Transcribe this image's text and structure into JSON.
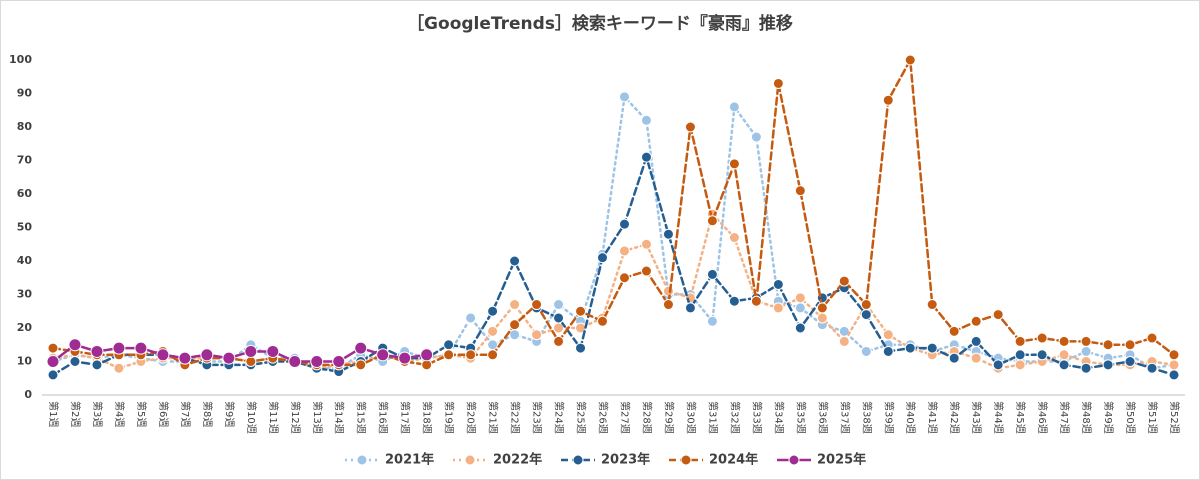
{
  "chart_data": {
    "type": "line",
    "title": "［GoogleTrends］検索キーワード『豪雨』推移",
    "categories": [
      "第1週",
      "第2週",
      "第3週",
      "第4週",
      "第5週",
      "第6週",
      "第7週",
      "第8週",
      "第9週",
      "第10週",
      "第11週",
      "第12週",
      "第13週",
      "第14週",
      "第15週",
      "第16週",
      "第17週",
      "第18週",
      "第19週",
      "第20週",
      "第21週",
      "第22週",
      "第23週",
      "第24週",
      "第25週",
      "第26週",
      "第27週",
      "第28週",
      "第29週",
      "第30週",
      "第31週",
      "第32週",
      "第33週",
      "第34週",
      "第35週",
      "第36週",
      "第37週",
      "第38週",
      "第39週",
      "第40週",
      "第41週",
      "第42週",
      "第43週",
      "第44週",
      "第45週",
      "第46週",
      "第47週",
      "第48週",
      "第49週",
      "第50週",
      "第51週",
      "第52週"
    ],
    "ylim": [
      0,
      100
    ],
    "yticks": [
      0,
      10,
      20,
      30,
      40,
      50,
      60,
      70,
      80,
      90,
      100
    ],
    "grid": false,
    "legend": "bottom",
    "series": [
      {
        "name": "2021年",
        "color": "#9dc3e6",
        "dash": "dotted",
        "values": [
          10,
          12,
          11,
          12,
          11,
          10,
          10,
          10,
          10,
          15,
          11,
          11,
          8,
          8,
          12,
          10,
          13,
          11,
          12,
          23,
          15,
          18,
          16,
          27,
          22,
          42,
          89,
          82,
          30,
          30,
          22,
          86,
          77,
          28,
          26,
          21,
          19,
          13,
          15,
          15,
          13,
          15,
          13,
          11,
          10,
          10,
          10,
          13,
          11,
          12,
          8,
          9
        ]
      },
      {
        "name": "2022年",
        "color": "#f4b183",
        "dash": "dotted",
        "values": [
          11,
          12,
          11,
          8,
          10,
          11,
          11,
          11,
          11,
          10,
          11,
          10,
          8,
          9,
          10,
          12,
          10,
          11,
          12,
          11,
          19,
          27,
          18,
          20,
          20,
          23,
          43,
          45,
          31,
          29,
          54,
          47,
          28,
          26,
          29,
          23,
          16,
          27,
          18,
          14,
          12,
          13,
          11,
          8,
          9,
          10,
          12,
          10,
          9,
          9,
          10,
          9
        ]
      },
      {
        "name": "2023年",
        "color": "#255e91",
        "dash": "dashed",
        "values": [
          6,
          10,
          9,
          12,
          12,
          12,
          11,
          9,
          9,
          9,
          10,
          10,
          8,
          7,
          10,
          14,
          11,
          11,
          15,
          14,
          25,
          40,
          26,
          23,
          14,
          41,
          51,
          71,
          48,
          26,
          36,
          28,
          29,
          33,
          20,
          29,
          32,
          24,
          13,
          14,
          14,
          11,
          16,
          9,
          12,
          12,
          9,
          8,
          9,
          10,
          8,
          6
        ]
      },
      {
        "name": "2024年",
        "color": "#c55a11",
        "dash": "dashed",
        "values": [
          14,
          13,
          12,
          12,
          12,
          13,
          9,
          11,
          11,
          10,
          11,
          10,
          9,
          9,
          9,
          12,
          10,
          9,
          12,
          12,
          12,
          21,
          27,
          16,
          25,
          22,
          35,
          37,
          27,
          80,
          52,
          69,
          28,
          93,
          61,
          26,
          34,
          27,
          88,
          100,
          27,
          19,
          22,
          24,
          16,
          17,
          16,
          16,
          15,
          15,
          17,
          12
        ]
      },
      {
        "name": "2025年",
        "color": "#a02b93",
        "dash": "solid",
        "values": [
          10,
          15,
          13,
          14,
          14,
          12,
          11,
          12,
          11,
          13,
          13,
          10,
          10,
          10,
          14,
          12,
          11,
          12,
          null,
          null,
          null,
          null,
          null,
          null,
          null,
          null,
          null,
          null,
          null,
          null,
          null,
          null,
          null,
          null,
          null,
          null,
          null,
          null,
          null,
          null,
          null,
          null,
          null,
          null,
          null,
          null,
          null,
          null,
          null,
          null,
          null,
          null
        ]
      }
    ]
  }
}
